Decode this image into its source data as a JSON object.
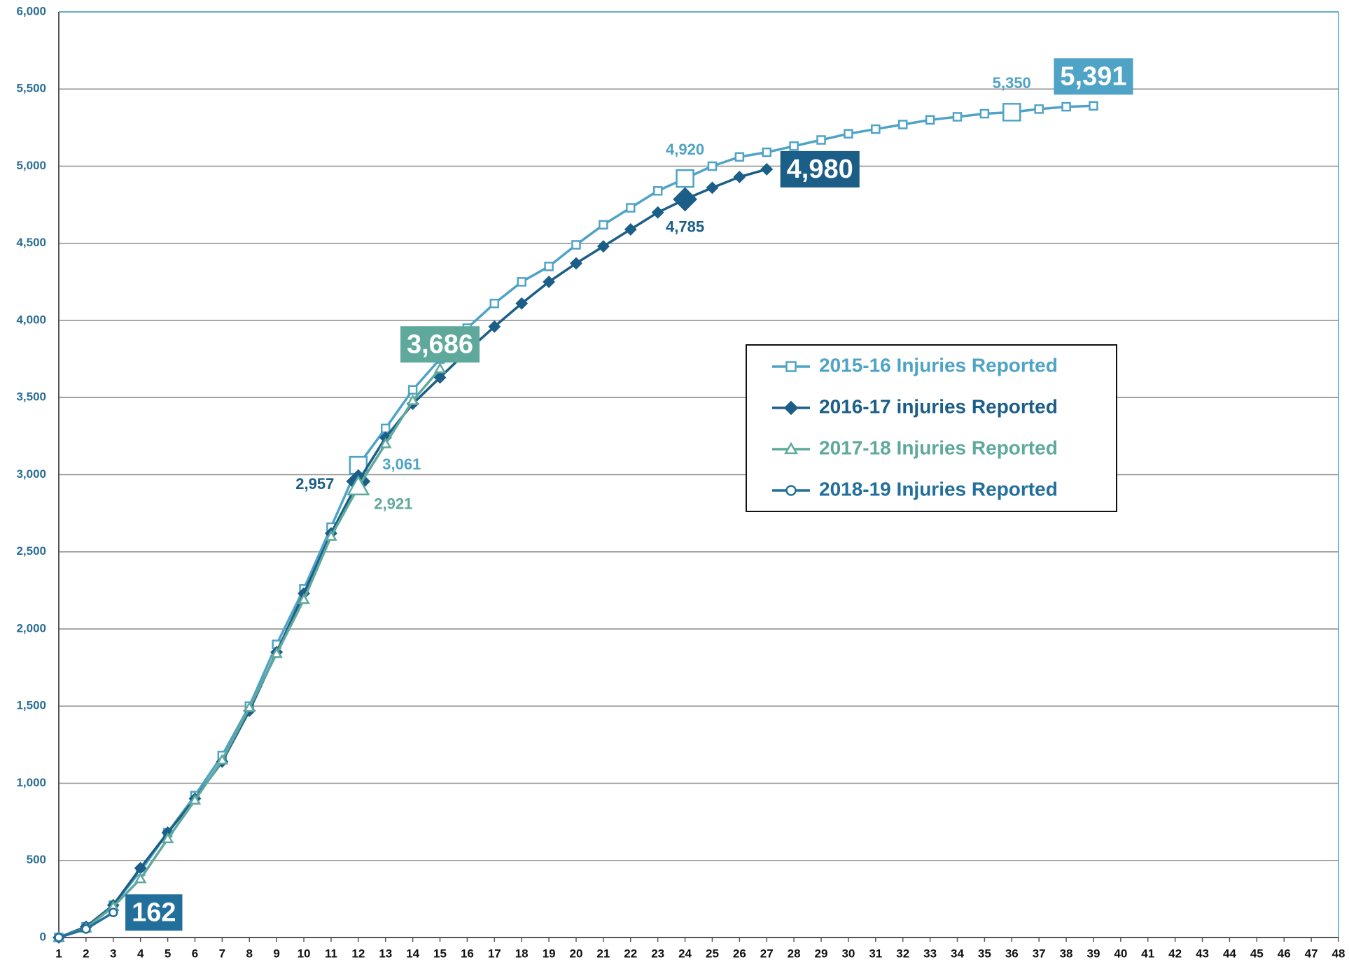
{
  "chart_data": {
    "type": "line",
    "x": [
      1,
      2,
      3,
      4,
      5,
      6,
      7,
      8,
      9,
      10,
      11,
      12,
      13,
      14,
      15,
      16,
      17,
      18,
      19,
      20,
      21,
      22,
      23,
      24,
      25,
      26,
      27,
      28,
      29,
      30,
      31,
      32,
      33,
      34,
      35,
      36,
      37,
      38,
      39,
      40,
      41,
      42,
      43,
      44,
      45,
      46,
      47,
      48
    ],
    "xlim": [
      1,
      48
    ],
    "xticks": [
      1,
      2,
      3,
      4,
      5,
      6,
      7,
      8,
      9,
      10,
      11,
      12,
      13,
      14,
      15,
      16,
      17,
      18,
      19,
      20,
      21,
      22,
      23,
      24,
      25,
      26,
      27,
      28,
      29,
      30,
      31,
      32,
      33,
      34,
      35,
      36,
      37,
      38,
      39,
      40,
      41,
      42,
      43,
      44,
      45,
      46,
      47,
      48
    ],
    "ylim": [
      0,
      6000
    ],
    "yticks": [
      0,
      500,
      {
        "value": 1000,
        "label": "1,000"
      },
      {
        "value": 1500,
        "label": "1,500"
      },
      {
        "value": 2000,
        "label": "2,000"
      },
      {
        "value": 2500,
        "label": "2,500"
      },
      {
        "value": 3000,
        "label": "3,000"
      },
      {
        "value": 3500,
        "label": "3,500"
      },
      {
        "value": 4000,
        "label": "4,000"
      },
      {
        "value": 4500,
        "label": "4,500"
      },
      {
        "value": 5000,
        "label": "5,000"
      },
      {
        "value": 5500,
        "label": "5,500"
      },
      {
        "value": 6000,
        "label": "6,000"
      }
    ],
    "grid": true,
    "series": [
      {
        "name": "2015-16 Injuries Reported",
        "color": "#4fa3c6",
        "marker": "square",
        "values": [
          0,
          70,
          210,
          430,
          680,
          920,
          1180,
          1500,
          1900,
          2260,
          2660,
          3061,
          3300,
          3550,
          3750,
          3950,
          4110,
          4250,
          4350,
          4490,
          4620,
          4730,
          4840,
          4920,
          5000,
          5060,
          5090,
          5130,
          5170,
          5210,
          5240,
          5270,
          5300,
          5320,
          5340,
          5350,
          5370,
          5385,
          5391,
          null,
          null,
          null,
          null,
          null,
          null,
          null,
          null,
          null
        ],
        "value_labels": [
          null,
          null,
          null,
          null,
          null,
          null,
          null,
          null,
          null,
          null,
          null,
          "3,061",
          null,
          null,
          null,
          null,
          null,
          null,
          null,
          null,
          null,
          null,
          null,
          "4,920",
          null,
          null,
          null,
          null,
          null,
          null,
          null,
          null,
          null,
          null,
          null,
          "5,350",
          null,
          null,
          "5,391",
          null,
          null,
          null,
          null,
          null,
          null,
          null,
          null,
          null
        ]
      },
      {
        "name": "2016-17 injuries Reported",
        "color": "#1b5e87",
        "marker": "diamond",
        "values": [
          0,
          70,
          210,
          450,
          680,
          900,
          1140,
          1470,
          1850,
          2230,
          2620,
          2957,
          3240,
          3460,
          3630,
          3800,
          3960,
          4110,
          4250,
          4370,
          4480,
          4590,
          4700,
          4785,
          4860,
          4930,
          4980,
          null,
          null,
          null,
          null,
          null,
          null,
          null,
          null,
          null,
          null,
          null,
          null,
          null,
          null,
          null,
          null,
          null,
          null,
          null,
          null,
          null
        ],
        "value_labels": [
          null,
          null,
          null,
          null,
          null,
          null,
          null,
          null,
          null,
          null,
          null,
          "2,957",
          null,
          null,
          null,
          null,
          null,
          null,
          null,
          null,
          null,
          null,
          null,
          "4,785",
          null,
          null,
          "4,980",
          null,
          null,
          null,
          null,
          null,
          null,
          null,
          null,
          null,
          null,
          null,
          null,
          null,
          null,
          null,
          null,
          null,
          null,
          null,
          null,
          null
        ]
      },
      {
        "name": "2017-18 Injuries Reported",
        "color": "#5fa89c",
        "marker": "triangle",
        "values": [
          0,
          60,
          200,
          380,
          640,
          890,
          1150,
          1490,
          1840,
          2190,
          2600,
          2921,
          3200,
          3480,
          3686,
          null,
          null,
          null,
          null,
          null,
          null,
          null,
          null,
          null,
          null,
          null,
          null,
          null,
          null,
          null,
          null,
          null,
          null,
          null,
          null,
          null,
          null,
          null,
          null,
          null,
          null,
          null,
          null,
          null,
          null,
          null,
          null,
          null
        ],
        "value_labels": [
          null,
          null,
          null,
          null,
          null,
          null,
          null,
          null,
          null,
          null,
          null,
          "2,921",
          null,
          null,
          "3,686",
          null,
          null,
          null,
          null,
          null,
          null,
          null,
          null,
          null,
          null,
          null,
          null,
          null,
          null,
          null,
          null,
          null,
          null,
          null,
          null,
          null,
          null,
          null,
          null,
          null,
          null,
          null,
          null,
          null,
          null,
          null,
          null,
          null
        ]
      },
      {
        "name": "2018-19 Injuries Reported",
        "color": "#236f9c",
        "marker": "circle",
        "values": [
          0,
          55,
          162,
          null,
          null,
          null,
          null,
          null,
          null,
          null,
          null,
          null,
          null,
          null,
          null,
          null,
          null,
          null,
          null,
          null,
          null,
          null,
          null,
          null,
          null,
          null,
          null,
          null,
          null,
          null,
          null,
          null,
          null,
          null,
          null,
          null,
          null,
          null,
          null,
          null,
          null,
          null,
          null,
          null,
          null,
          null,
          null,
          null
        ],
        "value_labels": [
          null,
          null,
          "162",
          null,
          null,
          null,
          null,
          null,
          null,
          null,
          null,
          null,
          null,
          null,
          null,
          null,
          null,
          null,
          null,
          null,
          null,
          null,
          null,
          null,
          null,
          null,
          null,
          null,
          null,
          null,
          null,
          null,
          null,
          null,
          null,
          null,
          null,
          null,
          null,
          null,
          null,
          null,
          null,
          null,
          null,
          null,
          null,
          null
        ]
      }
    ]
  }
}
